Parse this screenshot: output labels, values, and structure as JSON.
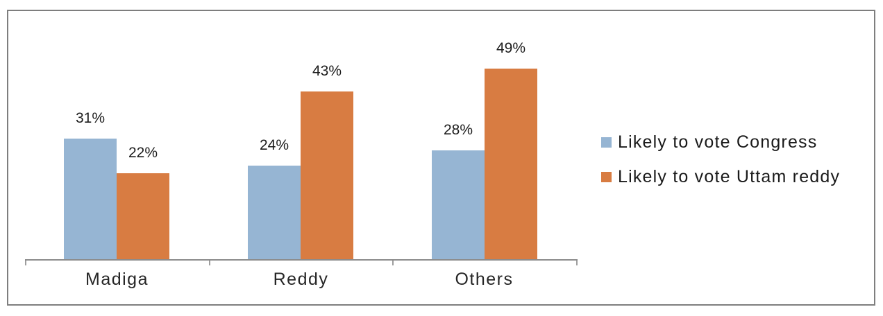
{
  "chart_data": {
    "type": "bar",
    "categories": [
      "Madiga",
      "Reddy",
      "Others"
    ],
    "series": [
      {
        "name": "Likely to vote Congress",
        "color": "#96B5D3",
        "values": [
          31,
          24,
          28
        ]
      },
      {
        "name": "Likely to vote Uttam reddy",
        "color": "#D87C42",
        "values": [
          22,
          43,
          49
        ]
      }
    ],
    "value_suffix": "%",
    "data_labels": {
      "Madiga": [
        "31%",
        "22%"
      ],
      "Reddy": [
        "24%",
        "43%"
      ],
      "Others": [
        "28%",
        "49%"
      ]
    },
    "title": "",
    "xlabel": "",
    "ylabel": "",
    "ylim": [
      0,
      60
    ],
    "grid": false,
    "legend_position": "right",
    "colors": {
      "frame_border": "#7e7e7e",
      "axis_line": "#8c8c8c",
      "tick": "#9e9e9e",
      "label_text": "#1c1c1c"
    }
  }
}
